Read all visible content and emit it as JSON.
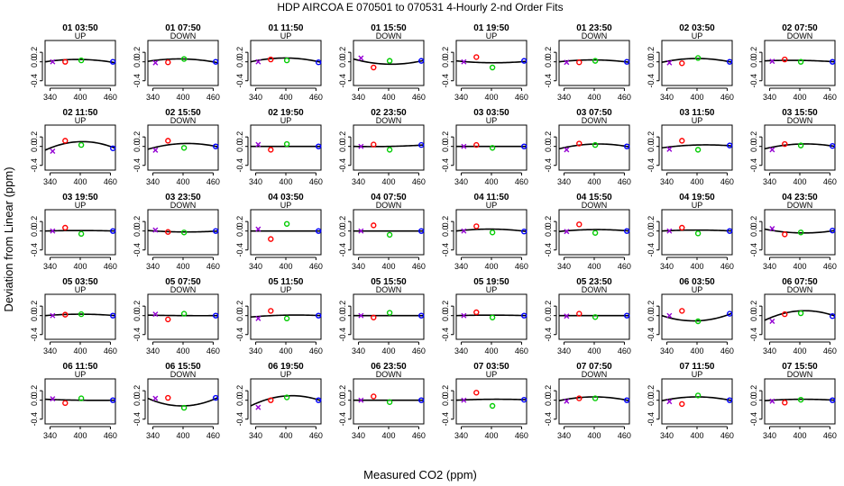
{
  "title": "HDP   AIRCOA E   070501 to 070531   4-Hourly 2-nd Order Fits",
  "xlabel": "Measured CO2 (ppm)",
  "ylabel": "Deviation from Linear (ppm)",
  "colors": {
    "p1": "#9400d3",
    "p2": "#ff0000",
    "p3": "#00cc00",
    "p4": "#0000ff",
    "axis": "#000000"
  },
  "chart_data": {
    "type": "scatter",
    "panel_layout": {
      "rows": 5,
      "cols": 8
    },
    "xlim": [
      330,
      470
    ],
    "ylim": [
      -0.5,
      0.45
    ],
    "xticks": [
      340,
      400,
      460
    ],
    "yticks": [
      -0.4,
      0.0,
      0.2
    ],
    "ytick_labels": [
      "-0.4",
      "0.0",
      "0.2"
    ],
    "x_standards": [
      345,
      370,
      402,
      465
    ],
    "panels": [
      {
        "label": "01 03:50",
        "dir": "UP",
        "y": [
          0.0,
          0.0,
          0.03,
          0.0
        ],
        "curve": [
          0.0,
          0.05,
          -0.02
        ]
      },
      {
        "label": "01 07:50",
        "dir": "DOWN",
        "y": [
          -0.02,
          -0.01,
          0.06,
          0.0
        ],
        "curve": [
          0.01,
          0.06,
          -0.02
        ]
      },
      {
        "label": "01 11:50",
        "dir": "UP",
        "y": [
          0.0,
          0.05,
          0.03,
          -0.01
        ],
        "curve": [
          0.0,
          0.08,
          -0.01
        ]
      },
      {
        "label": "01 15:50",
        "dir": "DOWN",
        "y": [
          0.08,
          -0.12,
          0.02,
          0.02
        ],
        "curve": [
          0.06,
          -0.05,
          0.03
        ]
      },
      {
        "label": "01 19:50",
        "dir": "UP",
        "y": [
          0.0,
          0.1,
          -0.12,
          0.02
        ],
        "curve": [
          0.02,
          -0.02,
          0.01
        ]
      },
      {
        "label": "01 23:50",
        "dir": "DOWN",
        "y": [
          -0.01,
          -0.01,
          0.02,
          0.0
        ],
        "curve": [
          0.0,
          0.04,
          -0.01
        ]
      },
      {
        "label": "02 03:50",
        "dir": "UP",
        "y": [
          -0.02,
          -0.03,
          0.08,
          0.0
        ],
        "curve": [
          -0.01,
          0.07,
          -0.01
        ]
      },
      {
        "label": "02 07:50",
        "dir": "DOWN",
        "y": [
          0.01,
          0.05,
          0.0,
          0.0
        ],
        "curve": [
          0.02,
          0.03,
          0.0
        ]
      },
      {
        "label": "02 11:50",
        "dir": "UP",
        "y": [
          -0.1,
          0.12,
          0.03,
          -0.04
        ],
        "curve": [
          -0.08,
          0.1,
          -0.04
        ]
      },
      {
        "label": "02 15:50",
        "dir": "DOWN",
        "y": [
          -0.08,
          0.12,
          -0.03,
          0.0
        ],
        "curve": [
          -0.06,
          0.06,
          -0.01
        ]
      },
      {
        "label": "02 19:50",
        "dir": "UP",
        "y": [
          0.04,
          -0.07,
          0.05,
          0.0
        ],
        "curve": [
          0.0,
          0.0,
          0.0
        ]
      },
      {
        "label": "02 23:50",
        "dir": "DOWN",
        "y": [
          0.0,
          0.04,
          -0.07,
          0.03
        ],
        "curve": [
          0.0,
          0.0,
          0.03
        ]
      },
      {
        "label": "03 03:50",
        "dir": "UP",
        "y": [
          0.0,
          0.03,
          -0.03,
          0.0
        ],
        "curve": [
          0.0,
          0.0,
          0.0
        ]
      },
      {
        "label": "03 07:50",
        "dir": "DOWN",
        "y": [
          -0.07,
          0.06,
          0.03,
          0.0
        ],
        "curve": [
          -0.05,
          0.05,
          -0.01
        ]
      },
      {
        "label": "03 11:50",
        "dir": "UP",
        "y": [
          -0.06,
          0.12,
          -0.07,
          0.02
        ],
        "curve": [
          -0.03,
          0.03,
          0.01
        ]
      },
      {
        "label": "03 15:50",
        "dir": "DOWN",
        "y": [
          -0.07,
          0.05,
          0.02,
          0.01
        ],
        "curve": [
          -0.05,
          0.05,
          0.0
        ]
      },
      {
        "label": "03 19:50",
        "dir": "UP",
        "y": [
          0.0,
          0.07,
          -0.06,
          0.0
        ],
        "curve": [
          0.0,
          0.01,
          0.0
        ]
      },
      {
        "label": "03 23:50",
        "dir": "DOWN",
        "y": [
          0.02,
          -0.02,
          -0.03,
          0.0
        ],
        "curve": [
          0.01,
          -0.02,
          0.0
        ]
      },
      {
        "label": "04 03:50",
        "dir": "UP",
        "y": [
          0.04,
          -0.17,
          0.15,
          0.0
        ],
        "curve": [
          0.0,
          0.0,
          0.0
        ]
      },
      {
        "label": "04 07:50",
        "dir": "DOWN",
        "y": [
          0.0,
          0.12,
          -0.08,
          0.0
        ],
        "curve": [
          0.0,
          0.0,
          0.0
        ]
      },
      {
        "label": "04 11:50",
        "dir": "UP",
        "y": [
          0.0,
          0.1,
          -0.03,
          -0.01
        ],
        "curve": [
          0.0,
          0.04,
          -0.01
        ]
      },
      {
        "label": "04 15:50",
        "dir": "DOWN",
        "y": [
          -0.01,
          0.14,
          -0.04,
          0.0
        ],
        "curve": [
          -0.01,
          0.03,
          0.0
        ]
      },
      {
        "label": "04 19:50",
        "dir": "UP",
        "y": [
          0.0,
          0.07,
          -0.05,
          0.0
        ],
        "curve": [
          0.0,
          0.02,
          0.0
        ]
      },
      {
        "label": "04 23:50",
        "dir": "DOWN",
        "y": [
          0.05,
          -0.07,
          -0.03,
          0.01
        ],
        "curve": [
          0.04,
          -0.04,
          0.01
        ]
      },
      {
        "label": "05 03:50",
        "dir": "UP",
        "y": [
          0.0,
          0.02,
          0.03,
          0.0
        ],
        "curve": [
          0.0,
          0.03,
          0.0
        ]
      },
      {
        "label": "05 07:50",
        "dir": "DOWN",
        "y": [
          0.03,
          -0.08,
          0.04,
          0.0
        ],
        "curve": [
          0.01,
          0.0,
          0.0
        ]
      },
      {
        "label": "05 11:50",
        "dir": "UP",
        "y": [
          -0.06,
          0.1,
          -0.06,
          0.0
        ],
        "curve": [
          -0.03,
          0.01,
          0.0
        ]
      },
      {
        "label": "05 15:50",
        "dir": "DOWN",
        "y": [
          0.0,
          -0.04,
          0.06,
          0.0
        ],
        "curve": [
          0.0,
          0.0,
          0.0
        ]
      },
      {
        "label": "05 19:50",
        "dir": "UP",
        "y": [
          0.0,
          0.07,
          -0.04,
          0.0
        ],
        "curve": [
          0.0,
          0.01,
          0.0
        ]
      },
      {
        "label": "05 23:50",
        "dir": "DOWN",
        "y": [
          -0.01,
          0.04,
          -0.03,
          0.0
        ],
        "curve": [
          0.0,
          0.0,
          0.0
        ]
      },
      {
        "label": "06 03:50",
        "dir": "UP",
        "y": [
          0.0,
          0.1,
          -0.12,
          0.04
        ],
        "curve": [
          0.0,
          -0.11,
          0.05
        ]
      },
      {
        "label": "06 07:50",
        "dir": "DOWN",
        "y": [
          -0.12,
          0.03,
          0.05,
          -0.01
        ],
        "curve": [
          -0.1,
          0.1,
          -0.01
        ]
      },
      {
        "label": "06 11:50",
        "dir": "UP",
        "y": [
          0.03,
          -0.06,
          0.04,
          0.0
        ],
        "curve": [
          0.02,
          0.0,
          0.0
        ]
      },
      {
        "label": "06 15:50",
        "dir": "DOWN",
        "y": [
          0.04,
          0.05,
          -0.16,
          0.05
        ],
        "curve": [
          0.04,
          -0.12,
          0.06
        ]
      },
      {
        "label": "06 19:50",
        "dir": "UP",
        "y": [
          -0.15,
          0.0,
          0.06,
          0.0
        ],
        "curve": [
          -0.12,
          0.09,
          -0.01
        ]
      },
      {
        "label": "06 23:50",
        "dir": "DOWN",
        "y": [
          0.0,
          0.08,
          -0.04,
          0.0
        ],
        "curve": [
          0.0,
          0.0,
          0.0
        ]
      },
      {
        "label": "07 03:50",
        "dir": "UP",
        "y": [
          0.0,
          0.16,
          -0.12,
          0.01
        ],
        "curve": [
          0.0,
          0.02,
          0.01
        ]
      },
      {
        "label": "07 07:50",
        "dir": "DOWN",
        "y": [
          -0.02,
          0.04,
          0.04,
          0.0
        ],
        "curve": [
          -0.01,
          0.07,
          -0.01
        ]
      },
      {
        "label": "07 11:50",
        "dir": "UP",
        "y": [
          -0.03,
          -0.08,
          0.1,
          0.0
        ],
        "curve": [
          -0.01,
          0.07,
          -0.01
        ]
      },
      {
        "label": "07 15:50",
        "dir": "DOWN",
        "y": [
          -0.02,
          -0.05,
          0.01,
          0.0
        ],
        "curve": [
          -0.01,
          0.02,
          0.0
        ]
      }
    ]
  }
}
